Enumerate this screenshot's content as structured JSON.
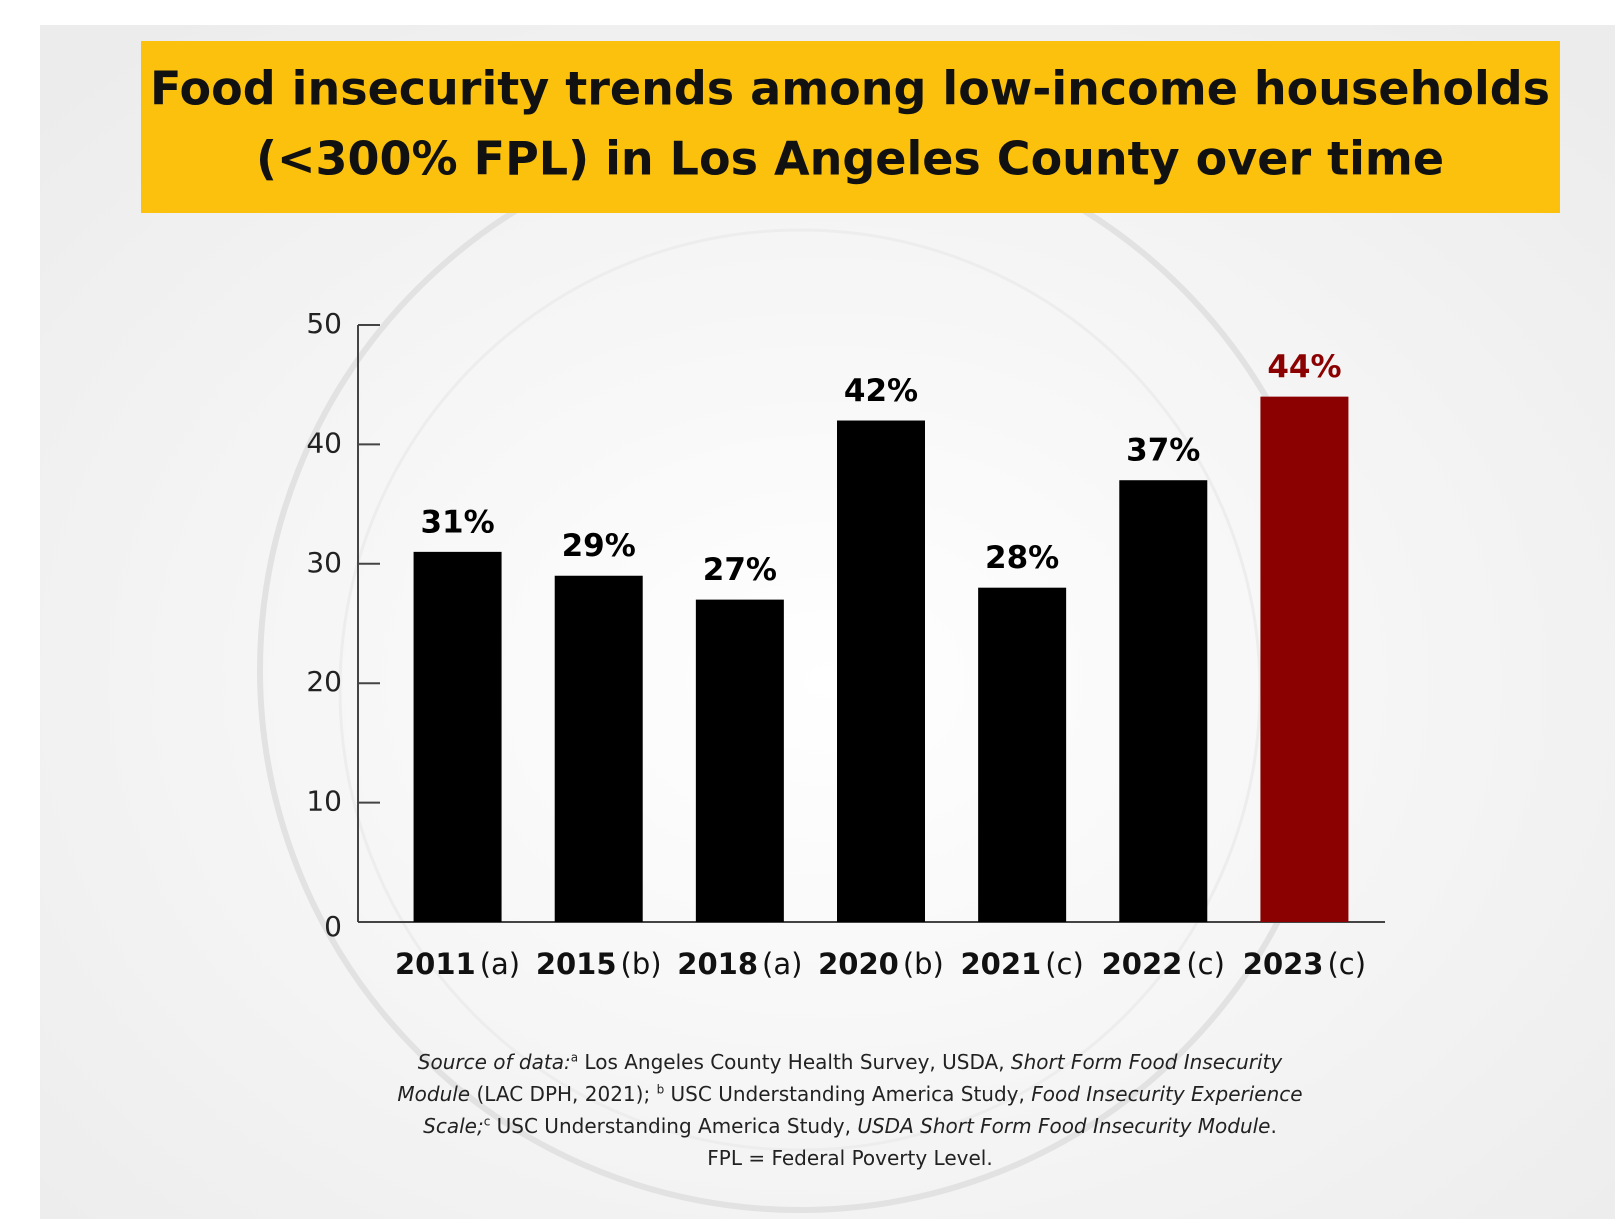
{
  "chart_data": {
    "type": "bar",
    "title_lines": [
      "Food insecurity trends among low-income households",
      "(<300% FPL) in Los Angeles County over time"
    ],
    "categories": [
      "2011",
      "2015",
      "2018",
      "2020",
      "2021",
      "2022",
      "2023"
    ],
    "category_notes": [
      "(a)",
      "(b)",
      "(a)",
      "(b)",
      "(c)",
      "(c)",
      "(c)"
    ],
    "values": [
      31,
      29,
      27,
      42,
      28,
      37,
      44
    ],
    "value_labels": [
      "31%",
      "29%",
      "27%",
      "42%",
      "28%",
      "37%",
      "44%"
    ],
    "colors": [
      "#000000",
      "#000000",
      "#000000",
      "#000000",
      "#000000",
      "#000000",
      "#8b0000"
    ],
    "ylim": [
      0,
      50
    ],
    "yticks": [
      0,
      10,
      20,
      30,
      40,
      50
    ],
    "grid": false
  },
  "footnote": [
    [
      {
        "text": "Source of data:",
        "style": "italic"
      },
      {
        "text": "a",
        "style": "sup"
      },
      {
        "text": " Los Angeles County Health Survey, USDA, ",
        "style": "normal"
      },
      {
        "text": "Short Form Food Insecurity",
        "style": "italic"
      }
    ],
    [
      {
        "text": "Module",
        "style": "italic"
      },
      {
        "text": " (LAC DPH, 2021); ",
        "style": "normal"
      },
      {
        "text": "b",
        "style": "sup"
      },
      {
        "text": " USC Understanding America Study, ",
        "style": "normal"
      },
      {
        "text": "Food Insecurity Experience",
        "style": "italic"
      }
    ],
    [
      {
        "text": "Scale;",
        "style": "italic"
      },
      {
        "text": "c",
        "style": "sup"
      },
      {
        "text": " USC Understanding America Study, ",
        "style": "normal"
      },
      {
        "text": "USDA Short Form Food Insecurity Module",
        "style": "italic"
      },
      {
        "text": ".",
        "style": "normal"
      }
    ],
    [
      {
        "text": "FPL = Federal Poverty Level.",
        "style": "normal"
      }
    ]
  ]
}
